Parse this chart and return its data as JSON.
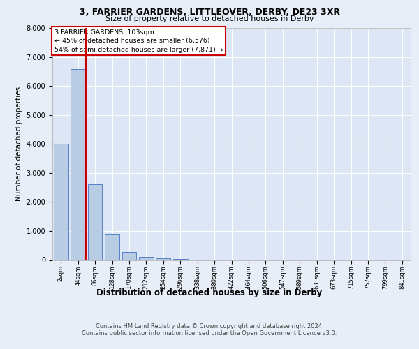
{
  "title1": "3, FARRIER GARDENS, LITTLEOVER, DERBY, DE23 3XR",
  "title2": "Size of property relative to detached houses in Derby",
  "xlabel": "Distribution of detached houses by size in Derby",
  "ylabel": "Number of detached properties",
  "categories": [
    "2sqm",
    "44sqm",
    "86sqm",
    "128sqm",
    "170sqm",
    "212sqm",
    "254sqm",
    "296sqm",
    "338sqm",
    "380sqm",
    "422sqm",
    "464sqm",
    "506sqm",
    "547sqm",
    "589sqm",
    "631sqm",
    "673sqm",
    "715sqm",
    "757sqm",
    "799sqm",
    "841sqm"
  ],
  "bar_heights": [
    4000,
    6576,
    2600,
    900,
    270,
    120,
    70,
    40,
    15,
    5,
    2,
    0,
    0,
    0,
    0,
    0,
    0,
    0,
    0,
    0,
    0
  ],
  "bar_color": "#b8cce4",
  "bar_edge_color": "#4472c4",
  "red_line_x": 1.45,
  "annotation_title": "3 FARRIER GARDENS: 103sqm",
  "annotation_line1": "← 45% of detached houses are smaller (6,576)",
  "annotation_line2": "54% of semi-detached houses are larger (7,871) →",
  "red_color": "#cc0000",
  "footer1": "Contains HM Land Registry data © Crown copyright and database right 2024.",
  "footer2": "Contains public sector information licensed under the Open Government Licence v3.0.",
  "ylim": [
    0,
    8000
  ],
  "yticks": [
    0,
    1000,
    2000,
    3000,
    4000,
    5000,
    6000,
    7000,
    8000
  ],
  "background_color": "#e8eef8",
  "plot_background": "#dce6f5"
}
